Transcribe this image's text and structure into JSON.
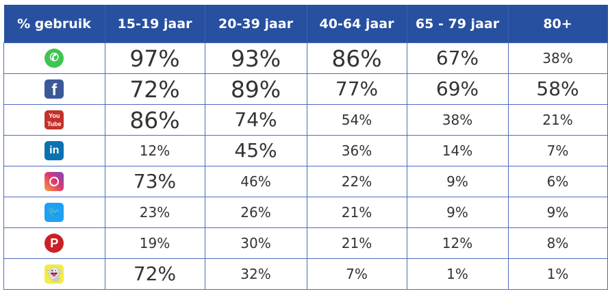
{
  "header": [
    "% gebruik",
    "15-19 jaar",
    "20-39 jaar",
    "40-64 jaar",
    "65 - 79 jaar",
    "80+"
  ],
  "rows": [
    {
      "icon": "whatsapp-icon",
      "cls": "wa",
      "glyph": "✆",
      "values": [
        "97%",
        "93%",
        "86%",
        "67%",
        "38%"
      ]
    },
    {
      "icon": "facebook-icon",
      "cls": "fb",
      "glyph": "f",
      "values": [
        "72%",
        "89%",
        "77%",
        "69%",
        "58%"
      ]
    },
    {
      "icon": "youtube-icon",
      "cls": "yt",
      "glyph": "You Tube",
      "values": [
        "86%",
        "74%",
        "54%",
        "38%",
        "21%"
      ]
    },
    {
      "icon": "linkedin-icon",
      "cls": "li",
      "glyph": "in",
      "values": [
        "12%",
        "45%",
        "36%",
        "14%",
        "7%"
      ]
    },
    {
      "icon": "instagram-icon",
      "cls": "ig",
      "glyph": "",
      "values": [
        "73%",
        "46%",
        "22%",
        "9%",
        "6%"
      ]
    },
    {
      "icon": "twitter-icon",
      "cls": "tw",
      "glyph": "🐦",
      "values": [
        "23%",
        "26%",
        "21%",
        "9%",
        "9%"
      ]
    },
    {
      "icon": "pinterest-icon",
      "cls": "pi",
      "glyph": "P",
      "values": [
        "19%",
        "30%",
        "21%",
        "12%",
        "8%"
      ]
    },
    {
      "icon": "snapchat-icon",
      "cls": "sc",
      "glyph": "👻",
      "values": [
        "72%",
        "32%",
        "7%",
        "1%",
        "1%"
      ]
    }
  ],
  "colors": {
    "header_bg": "#2850a0",
    "border": "#4a6cc0"
  }
}
